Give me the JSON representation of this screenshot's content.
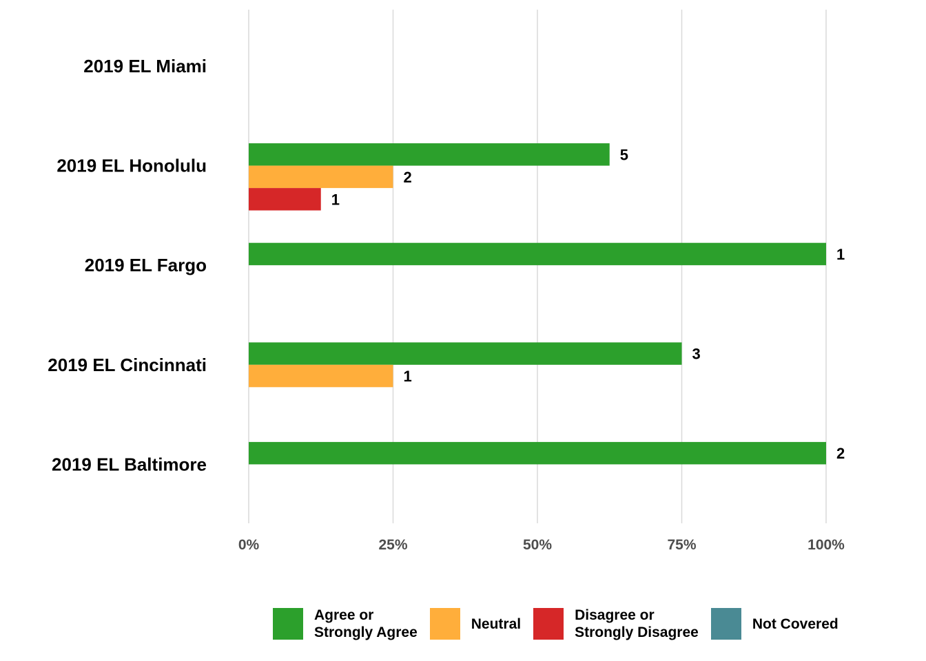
{
  "chart_data": {
    "type": "bar",
    "orientation": "horizontal",
    "categories": [
      "2019 EL Miami",
      "2019 EL Honolulu",
      "2019 EL Fargo",
      "2019 EL Cincinnati",
      "2019 EL Baltimore"
    ],
    "series": [
      {
        "name": "Agree or\nStrongly Agree",
        "color": "#2ca02c",
        "percent": [
          null,
          62.5,
          100,
          75,
          100
        ],
        "counts": [
          null,
          5,
          1,
          3,
          2
        ]
      },
      {
        "name": "Neutral",
        "color": "#ffae3b",
        "percent": [
          null,
          25,
          null,
          25,
          null
        ],
        "counts": [
          null,
          2,
          null,
          1,
          null
        ]
      },
      {
        "name": "Disagree or\nStrongly Disagree",
        "color": "#d62728",
        "percent": [
          null,
          12.5,
          null,
          null,
          null
        ],
        "counts": [
          null,
          1,
          null,
          null,
          null
        ]
      },
      {
        "name": "Not Covered",
        "color": "#4a8a94",
        "percent": [
          null,
          null,
          null,
          null,
          null
        ],
        "counts": [
          null,
          null,
          null,
          null,
          null
        ]
      }
    ],
    "xticks": [
      "0%",
      "25%",
      "50%",
      "75%",
      "100%"
    ],
    "xlim": [
      0,
      100
    ],
    "grid": "vertical",
    "legend_position": "bottom"
  }
}
